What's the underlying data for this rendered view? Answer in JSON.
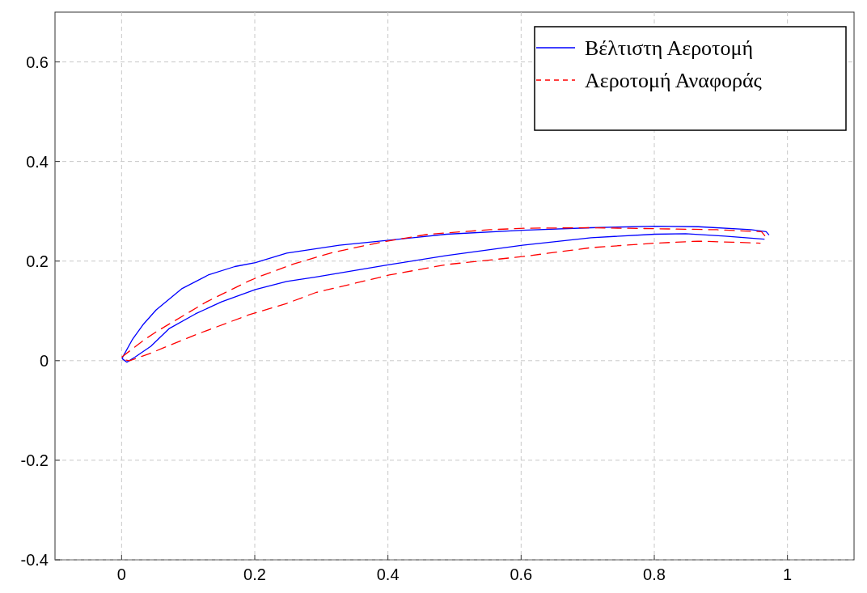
{
  "chart_data": {
    "type": "line",
    "xlim": [
      -0.1,
      1.1
    ],
    "ylim": [
      -0.4,
      0.7
    ],
    "xticks": [
      0,
      0.2,
      0.4,
      0.6,
      0.8,
      1
    ],
    "yticks": [
      -0.4,
      -0.2,
      0,
      0.2,
      0.4,
      0.6
    ],
    "grid": true,
    "legend": "top right",
    "marker": "none",
    "series": [
      {
        "name": "Βέλτιστη Αεροτομή",
        "color": "#0000ff",
        "line_style": "solid",
        "x": [
          0.972,
          0.968,
          0.945,
          0.866,
          0.801,
          0.705,
          0.602,
          0.488,
          0.402,
          0.327,
          0.248,
          0.201,
          0.17,
          0.13,
          0.091,
          0.052,
          0.032,
          0.016,
          0.002,
          0.001,
          0.008,
          0.02,
          0.044,
          0.071,
          0.111,
          0.15,
          0.201,
          0.248,
          0.292,
          0.402,
          0.488,
          0.602,
          0.705,
          0.801,
          0.847,
          0.906,
          0.965
        ],
        "values": [
          0.253,
          0.259,
          0.263,
          0.269,
          0.27,
          0.267,
          0.262,
          0.254,
          0.242,
          0.232,
          0.216,
          0.197,
          0.189,
          0.172,
          0.145,
          0.102,
          0.072,
          0.042,
          0.008,
          0.004,
          -0.003,
          0.007,
          0.029,
          0.064,
          0.094,
          0.118,
          0.143,
          0.159,
          0.168,
          0.193,
          0.211,
          0.232,
          0.247,
          0.254,
          0.255,
          0.25,
          0.244
        ]
      },
      {
        "name": "Αεροτομή Αναφοράς",
        "color": "#ff0000",
        "line_style": "dashed",
        "x": [
          0.966,
          0.961,
          0.894,
          0.801,
          0.705,
          0.607,
          0.553,
          0.461,
          0.39,
          0.319,
          0.26,
          0.211,
          0.191,
          0.144,
          0.126,
          0.052,
          0.034,
          0.0,
          0.002,
          0.012,
          0.044,
          0.063,
          0.111,
          0.191,
          0.248,
          0.292,
          0.327,
          0.402,
          0.488,
          0.602,
          0.705,
          0.801,
          0.866,
          0.917,
          0.959
        ],
        "values": [
          0.251,
          0.259,
          0.263,
          0.265,
          0.267,
          0.266,
          0.263,
          0.254,
          0.238,
          0.218,
          0.195,
          0.171,
          0.16,
          0.129,
          0.117,
          0.058,
          0.042,
          0.007,
          0.002,
          0.0,
          0.015,
          0.026,
          0.052,
          0.092,
          0.115,
          0.137,
          0.148,
          0.172,
          0.193,
          0.209,
          0.227,
          0.236,
          0.24,
          0.238,
          0.236
        ]
      }
    ]
  }
}
